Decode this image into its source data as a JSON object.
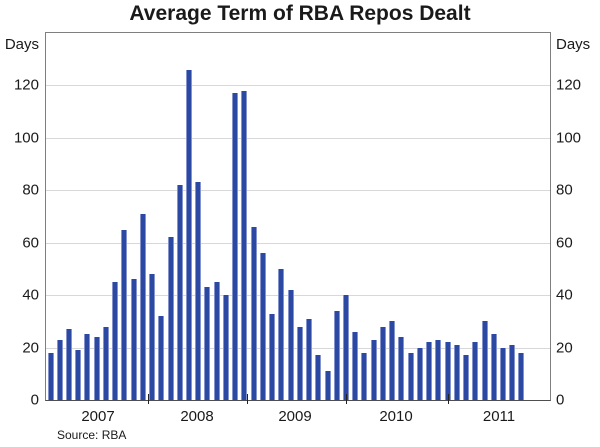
{
  "title": "Average Term of RBA Repos Dealt",
  "y_axis_label_left": "Days",
  "y_axis_label_right": "Days",
  "source": "Source: RBA",
  "colors": {
    "bar_fill": "#2b49a2",
    "bar_edge": "#8694cd",
    "gridline": "#d8d8d8",
    "plot_border": "#7f7f7f",
    "text": "#1a1a1a"
  },
  "chart_data": {
    "type": "bar",
    "title": "Average Term of RBA Repos Dealt",
    "xlabel": "",
    "ylabel": "Days",
    "ylim": [
      0,
      140
    ],
    "yticks": [
      0,
      20,
      40,
      60,
      80,
      100,
      120
    ],
    "grid": "horizontal gridlines on",
    "legend": "none",
    "x_year_labels": [
      "2007",
      "2008",
      "2009",
      "2010",
      "2011"
    ],
    "x_note": "bars run from mid-2006 to early 2011, roughly 10 bars per labelled year",
    "values": [
      18,
      23,
      27,
      19,
      25,
      24,
      28,
      45,
      65,
      46,
      71,
      48,
      32,
      62,
      82,
      126,
      83,
      43,
      45,
      40,
      117,
      118,
      66,
      56,
      33,
      50,
      42,
      28,
      31,
      17,
      11,
      34,
      40,
      26,
      18,
      23,
      28,
      30,
      24,
      18,
      20,
      22,
      23,
      22,
      21,
      17,
      22,
      30,
      25,
      20,
      21,
      18
    ]
  }
}
